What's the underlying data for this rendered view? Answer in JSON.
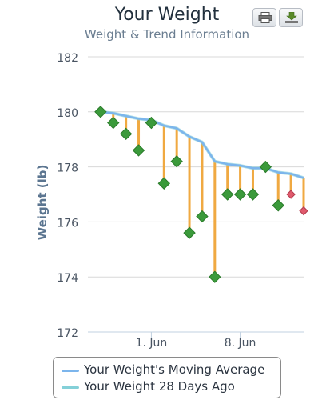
{
  "chart_data": {
    "type": "line",
    "title": "Your Weight",
    "subtitle": "Weight & Trend Information",
    "ylabel": "Weight (lb)",
    "xlabel": "",
    "ylim": [
      172,
      182
    ],
    "yticks": [
      172,
      174,
      176,
      178,
      180,
      182
    ],
    "xticks": [
      "1. Jun",
      "8. Jun"
    ],
    "xlim": [
      "2014-05-27",
      "2014-06-13"
    ],
    "grid": "horizontal",
    "legend_position": "bottom",
    "x": [
      "2014-05-28",
      "2014-05-29",
      "2014-05-30",
      "2014-05-31",
      "2014-06-01",
      "2014-06-02",
      "2014-06-03",
      "2014-06-04",
      "2014-06-05",
      "2014-06-06",
      "2014-06-07",
      "2014-06-08",
      "2014-06-09",
      "2014-06-10",
      "2014-06-11",
      "2014-06-12",
      "2014-06-13"
    ],
    "series": [
      {
        "name": "Your Weight's Moving Average",
        "color": "#7cb5ec",
        "values": [
          180.0,
          179.95,
          179.85,
          179.75,
          179.7,
          179.5,
          179.4,
          179.1,
          178.9,
          178.2,
          178.1,
          178.05,
          177.95,
          177.95,
          177.8,
          177.75,
          177.6
        ]
      },
      {
        "name": "Your Weight 28 Days Ago",
        "color": "#84d0d8",
        "values": [
          180.0,
          179.95,
          179.85,
          179.75,
          179.7,
          179.5,
          179.4,
          179.1,
          178.9,
          178.2,
          178.1,
          178.05,
          177.95,
          177.95,
          177.8,
          177.75,
          177.6
        ]
      }
    ],
    "weights": [
      180.0,
      179.6,
      179.2,
      178.6,
      179.6,
      177.4,
      178.2,
      175.6,
      176.2,
      174.0,
      177.0,
      177.0,
      177.0,
      178.0,
      176.6,
      177.0,
      176.4
    ],
    "weight_status": [
      "good",
      "good",
      "good",
      "good",
      "good",
      "good",
      "good",
      "good",
      "good",
      "good",
      "good",
      "good",
      "good",
      "good",
      "good",
      "bad",
      "bad"
    ],
    "colors": {
      "good_marker": "#3b9a3b",
      "bad_marker": "#e05a6d",
      "drop_line": "#f0a941",
      "grid": "#d8d8d8"
    }
  },
  "toolbar": {
    "print_icon": "printer-icon",
    "export_icon": "download-icon"
  }
}
